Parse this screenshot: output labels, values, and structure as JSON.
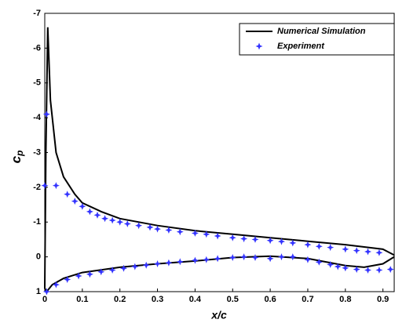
{
  "chart_data": {
    "type": "line",
    "xlabel": "x/c",
    "ylabel": {
      "base": "c",
      "sub": "p"
    },
    "xlim": [
      0,
      0.93
    ],
    "xticks": [
      0,
      0.1,
      0.2,
      0.3,
      0.4,
      0.5,
      0.6,
      0.7,
      0.8,
      0.9
    ],
    "ylim": [
      -7,
      1
    ],
    "yticks": [
      -7,
      -6,
      -5,
      -4,
      -3,
      -2,
      -1,
      0,
      1
    ],
    "invert_y": true,
    "legend": "top-right",
    "series": [
      {
        "name": "Numerical Simulation",
        "color": "#000000",
        "mode": "line",
        "x": [
          0.93,
          0.9,
          0.85,
          0.8,
          0.7,
          0.6,
          0.5,
          0.4,
          0.3,
          0.2,
          0.1,
          0.05,
          0.02,
          0.005,
          0,
          0.003,
          0.008,
          0.015,
          0.03,
          0.05,
          0.08,
          0.1,
          0.15,
          0.2,
          0.3,
          0.4,
          0.5,
          0.6,
          0.7,
          0.8,
          0.9,
          0.93
        ],
        "values": [
          0,
          0.2,
          0.3,
          0.25,
          0.05,
          -0.02,
          0.02,
          0.12,
          0.2,
          0.3,
          0.45,
          0.62,
          0.8,
          1.0,
          0.9,
          -3,
          -6.6,
          -4.5,
          -3,
          -2.3,
          -1.8,
          -1.55,
          -1.3,
          -1.1,
          -0.9,
          -0.75,
          -0.65,
          -0.55,
          -0.45,
          -0.35,
          -0.22,
          -0.05
        ]
      },
      {
        "name": "Experiment",
        "color": "#3333ff",
        "mode": "markers",
        "x": [
          0,
          0.005,
          0.03,
          0.06,
          0.08,
          0.1,
          0.12,
          0.14,
          0.16,
          0.18,
          0.2,
          0.22,
          0.25,
          0.28,
          0.3,
          0.33,
          0.36,
          0.4,
          0.43,
          0.46,
          0.5,
          0.53,
          0.56,
          0.6,
          0.63,
          0.66,
          0.7,
          0.73,
          0.76,
          0.8,
          0.83,
          0.86,
          0.89,
          0.005,
          0.03,
          0.06,
          0.09,
          0.12,
          0.15,
          0.18,
          0.21,
          0.24,
          0.27,
          0.3,
          0.33,
          0.36,
          0.4,
          0.43,
          0.46,
          0.5,
          0.53,
          0.56,
          0.6,
          0.63,
          0.66,
          0.7,
          0.73,
          0.76,
          0.78,
          0.8,
          0.83,
          0.86,
          0.89,
          0.92
        ],
        "values": [
          -2.05,
          -4.1,
          -2.05,
          -1.8,
          -1.6,
          -1.45,
          -1.3,
          -1.2,
          -1.1,
          -1.05,
          -1.0,
          -0.95,
          -0.9,
          -0.85,
          -0.8,
          -0.77,
          -0.72,
          -0.68,
          -0.65,
          -0.6,
          -0.55,
          -0.52,
          -0.5,
          -0.47,
          -0.44,
          -0.4,
          -0.35,
          -0.3,
          -0.27,
          -0.22,
          -0.18,
          -0.15,
          -0.12,
          1.0,
          0.8,
          0.65,
          0.55,
          0.5,
          0.43,
          0.38,
          0.33,
          0.28,
          0.24,
          0.2,
          0.17,
          0.14,
          0.1,
          0.08,
          0.05,
          0.02,
          0.0,
          0.02,
          0.05,
          0.0,
          0.0,
          0.08,
          0.15,
          0.22,
          0.28,
          0.32,
          0.36,
          0.38,
          0.38,
          0.36
        ]
      }
    ]
  }
}
